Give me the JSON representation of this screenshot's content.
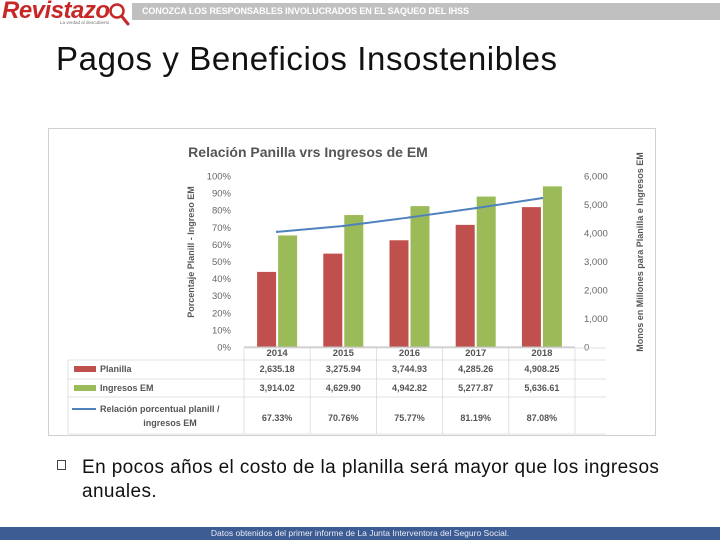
{
  "header": {
    "logo_text": "Revistazo",
    "logo_tagline": "La verdad al descubierto",
    "banner_text": "CONOZCA LOS RESPONSABLES INVOLUCRADOS EN EL SAQUEO DEL IHSS"
  },
  "slide": {
    "title": "Pagos y Beneficios Insostenibles",
    "bullet_text": "En pocos años el costo de la planilla será mayor que los ingresos anuales."
  },
  "footer": {
    "text": "Datos obtenidos del primer informe de La Junta Interventora del Seguro Social."
  },
  "colors": {
    "planilla": "#c0504d",
    "ingresos": "#9bbb59",
    "relacion": "#4f81bd"
  },
  "chart_data": {
    "type": "bar",
    "title": "Relación Panilla vrs Ingresos de EM",
    "ylabel_left": "Porcentaje Planill - Ingreso EM",
    "ylabel_right": "Monos en Millones para Planilla e Ingresos EM",
    "categories": [
      "2014",
      "2015",
      "2016",
      "2017",
      "2018"
    ],
    "ylim_left": [
      0,
      100
    ],
    "ylim_right": [
      0,
      6000
    ],
    "left_ticks": [
      "0%",
      "10%",
      "20%",
      "30%",
      "40%",
      "50%",
      "60%",
      "70%",
      "80%",
      "90%",
      "100%"
    ],
    "right_ticks": [
      "0",
      "1,000",
      "2,000",
      "3,000",
      "4,000",
      "5,000",
      "6,000"
    ],
    "grid": false,
    "series": [
      {
        "name": "Planilla",
        "axis": "right",
        "kind": "bar",
        "values": [
          2635.18,
          3275.94,
          3744.93,
          4285.26,
          4908.25
        ],
        "labels": [
          "2,635.18",
          "3,275.94",
          "3,744.93",
          "4,285.26",
          "4,908.25"
        ]
      },
      {
        "name": "Ingresos EM",
        "axis": "right",
        "kind": "bar",
        "values": [
          3914.02,
          4629.9,
          4942.82,
          5277.87,
          5636.61
        ],
        "labels": [
          "3,914.02",
          "4,629.90",
          "4,942.82",
          "5,277.87",
          "5,636.61"
        ]
      },
      {
        "name_lines": [
          "Relación porcentual planill /",
          "ingresos EM"
        ],
        "axis": "left",
        "kind": "line",
        "values": [
          67.33,
          70.76,
          75.77,
          81.19,
          87.08
        ],
        "labels": [
          "67.33%",
          "70.76%",
          "75.77%",
          "81.19%",
          "87.08%"
        ]
      }
    ]
  }
}
